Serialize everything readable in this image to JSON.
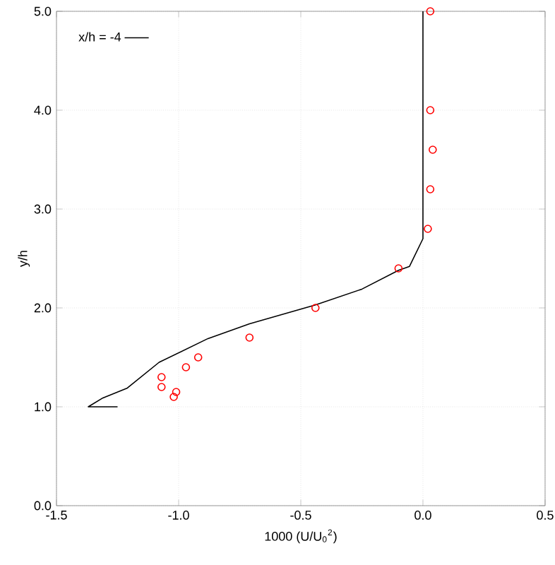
{
  "chart_data": {
    "type": "line",
    "xlabel": "1000 (U/U$_{0}$$^{2}$)",
    "ylabel": "y/h",
    "xlim": [
      -1.5,
      0.5
    ],
    "ylim": [
      0,
      5
    ],
    "xticks": [
      {
        "value": -1.5,
        "label": "-1.5"
      },
      {
        "value": -1.0,
        "label": "-1.0"
      },
      {
        "value": -0.5,
        "label": "-0.5"
      },
      {
        "value": 0,
        "label": "0.0"
      },
      {
        "value": 0.5,
        "label": "0.5"
      }
    ],
    "yticks": [
      {
        "value": 0,
        "label": "0.0"
      },
      {
        "value": 1,
        "label": "1.0"
      },
      {
        "value": 2,
        "label": "2.0"
      },
      {
        "value": 3,
        "label": "3.0"
      },
      {
        "value": 4,
        "label": "4.0"
      },
      {
        "value": 5,
        "label": "5.0"
      }
    ],
    "grid": true,
    "legend": "top left",
    "series": [
      {
        "name": "x/h = -4",
        "color": "#000000",
        "marker": "none",
        "line_style": "solid",
        "x": [
          -1.25,
          -1.37,
          -1.31,
          -1.21,
          -1.08,
          -0.88,
          -0.71,
          -0.44,
          -0.25,
          -0.1,
          -0.055,
          0.0,
          0.0
        ],
        "values": [
          1.0,
          1.0,
          1.09,
          1.19,
          1.45,
          1.69,
          1.84,
          2.03,
          2.19,
          2.38,
          2.42,
          2.7,
          5.0
        ]
      },
      {
        "type": "scatter",
        "color": "#ff0000",
        "marker": "circle",
        "x": [
          0.03,
          0.03,
          0.04,
          0.03,
          0.02,
          -0.1,
          -0.44,
          -0.71,
          -0.92,
          -0.97,
          -1.07,
          -1.07,
          -1.01,
          -1.02
        ],
        "values": [
          5.0,
          4.0,
          3.6,
          3.2,
          2.8,
          2.4,
          2.0,
          1.7,
          1.5,
          1.4,
          1.3,
          1.2,
          1.15,
          1.1
        ]
      }
    ]
  }
}
